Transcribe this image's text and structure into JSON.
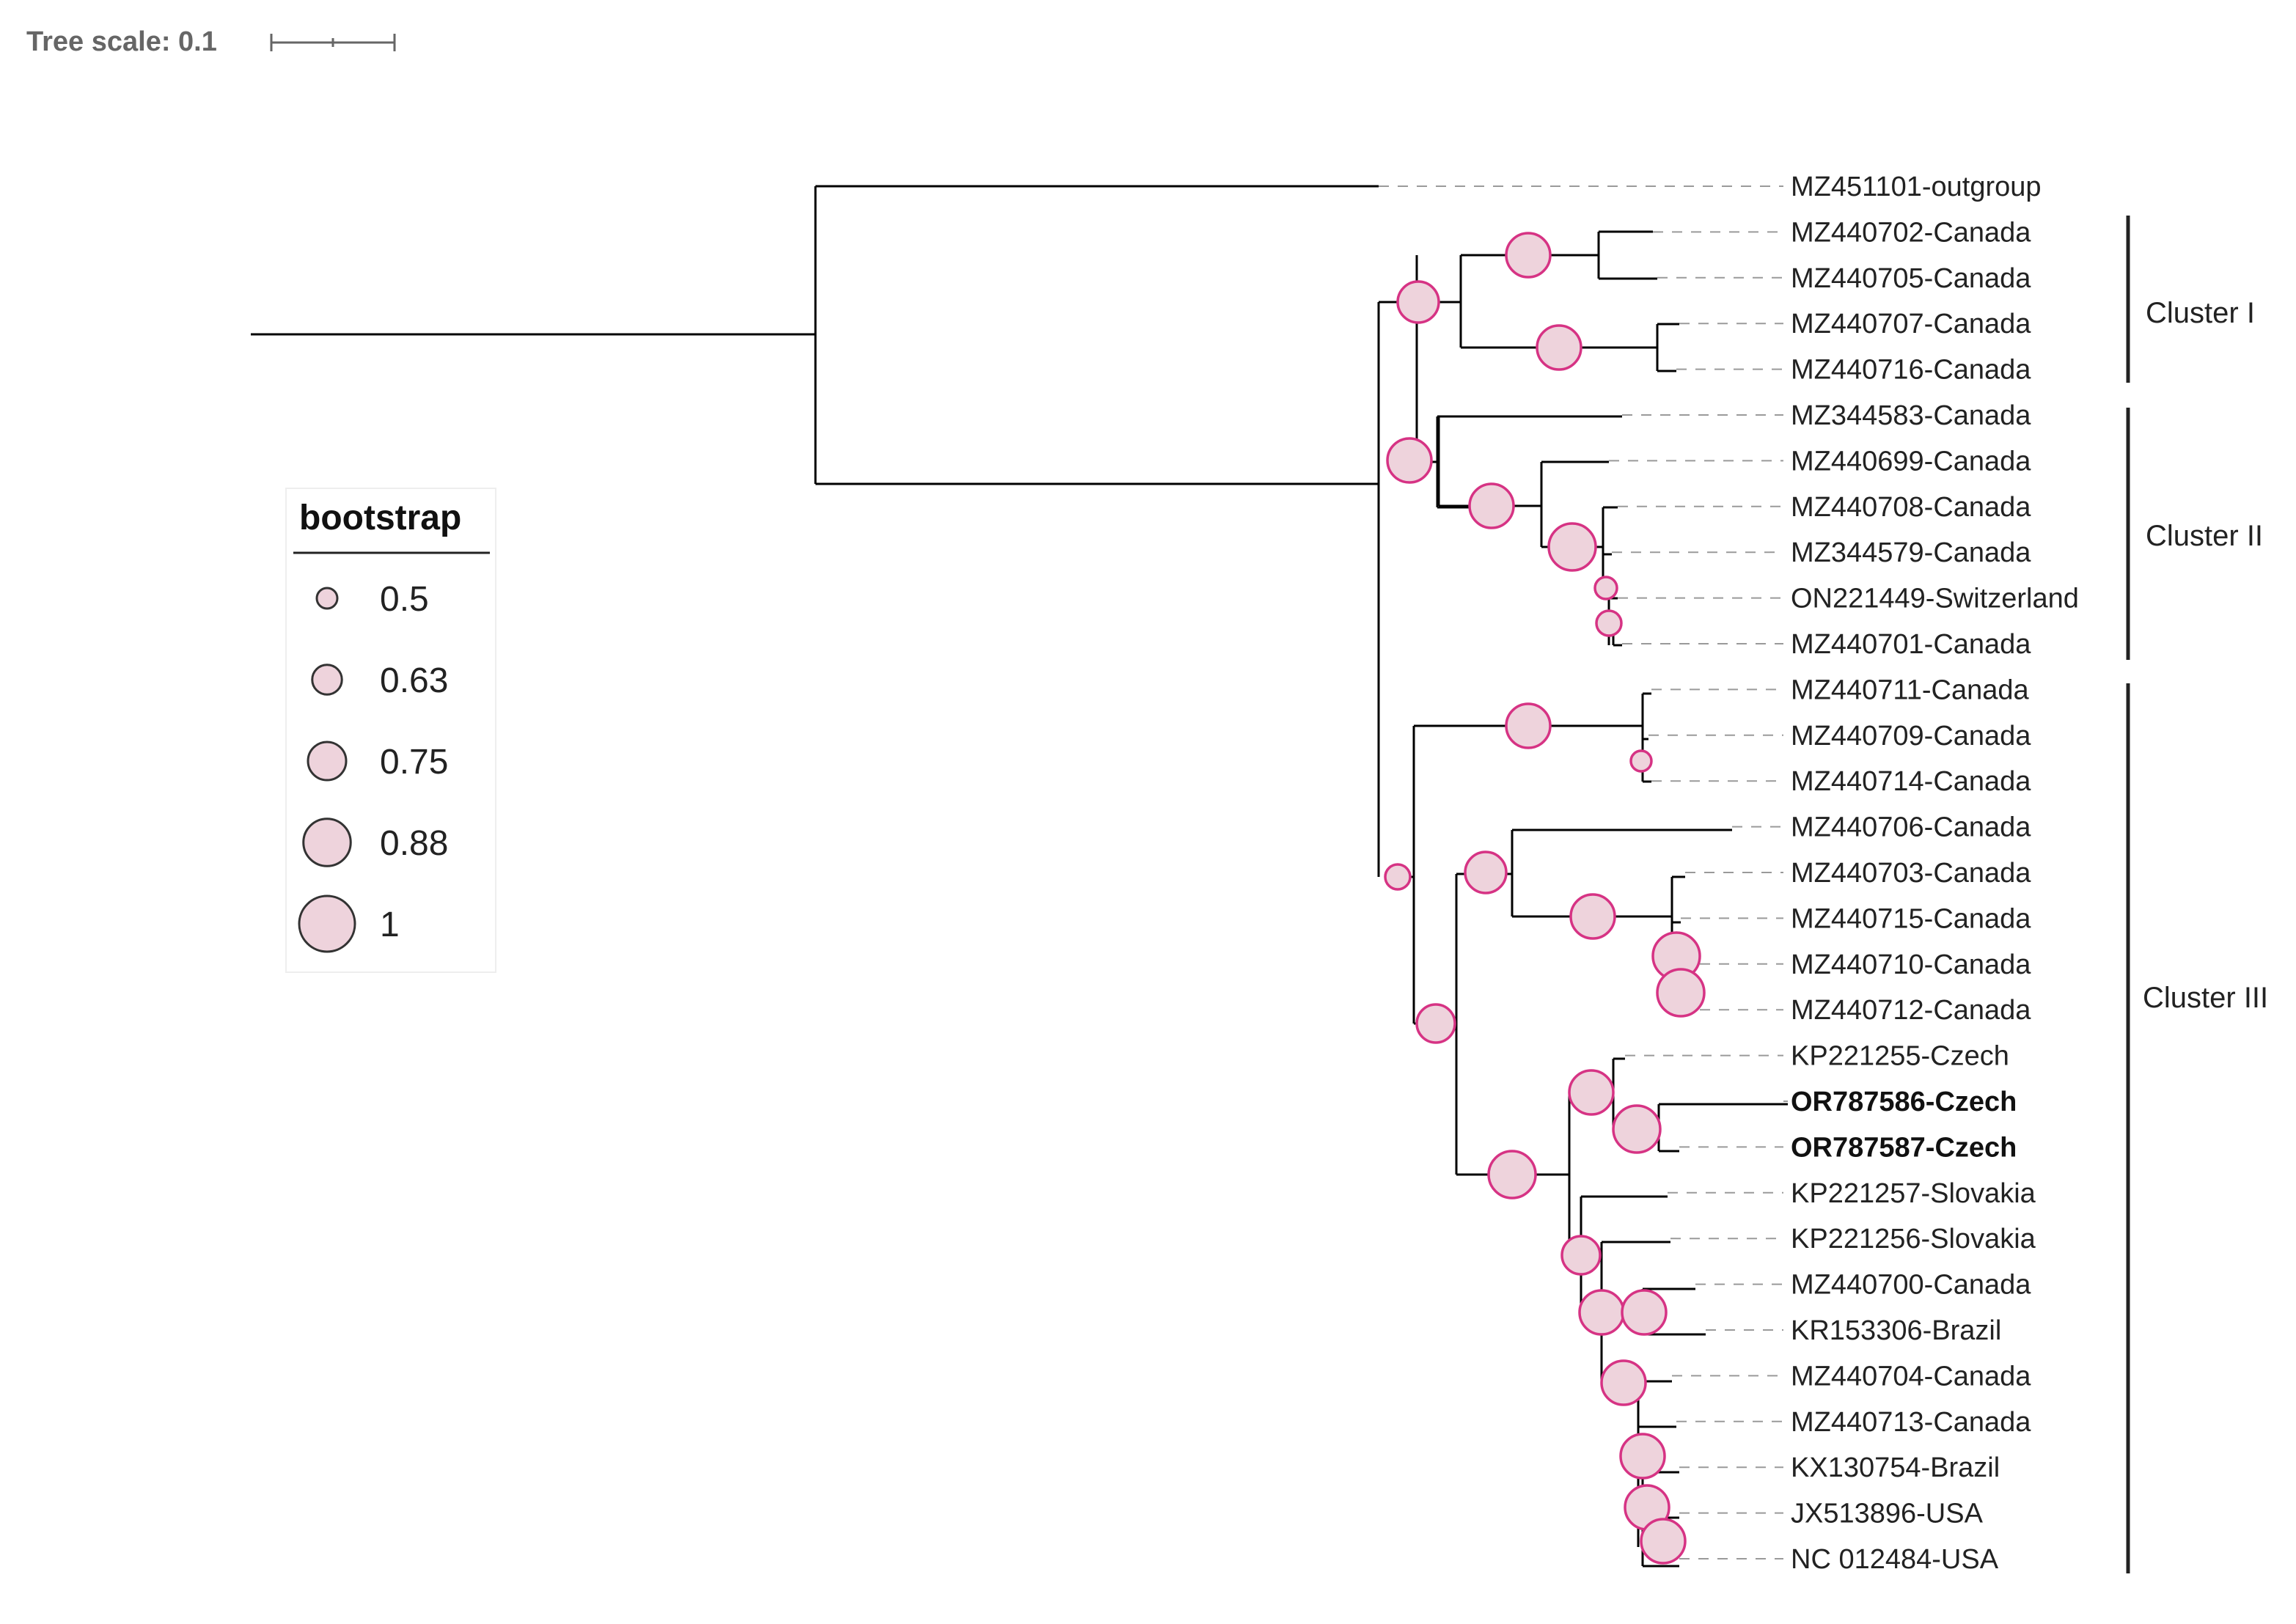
{
  "tree_scale": {
    "label": "Tree scale: 0.1"
  },
  "legend": {
    "title": "bootstrap",
    "items": [
      {
        "label": "0.5",
        "value": 0.5
      },
      {
        "label": "0.63",
        "value": 0.63
      },
      {
        "label": "0.75",
        "value": 0.75
      },
      {
        "label": "0.88",
        "value": 0.88
      },
      {
        "label": "1",
        "value": 1
      }
    ]
  },
  "leaves": [
    {
      "label": "MZ451101-outgroup",
      "bold": false
    },
    {
      "label": "MZ440702-Canada",
      "bold": false
    },
    {
      "label": "MZ440705-Canada",
      "bold": false
    },
    {
      "label": "MZ440707-Canada",
      "bold": false
    },
    {
      "label": "MZ440716-Canada",
      "bold": false
    },
    {
      "label": "MZ344583-Canada",
      "bold": false
    },
    {
      "label": "MZ440699-Canada",
      "bold": false
    },
    {
      "label": "MZ440708-Canada",
      "bold": false
    },
    {
      "label": "MZ344579-Canada",
      "bold": false
    },
    {
      "label": "ON221449-Switzerland",
      "bold": false
    },
    {
      "label": "MZ440701-Canada",
      "bold": false
    },
    {
      "label": "MZ440711-Canada",
      "bold": false
    },
    {
      "label": "MZ440709-Canada",
      "bold": false
    },
    {
      "label": "MZ440714-Canada",
      "bold": false
    },
    {
      "label": "MZ440706-Canada",
      "bold": false
    },
    {
      "label": "MZ440703-Canada",
      "bold": false
    },
    {
      "label": "MZ440715-Canada",
      "bold": false
    },
    {
      "label": "MZ440710-Canada",
      "bold": false
    },
    {
      "label": "MZ440712-Canada",
      "bold": false
    },
    {
      "label": "KP221255-Czech",
      "bold": false
    },
    {
      "label": "OR787586-Czech",
      "bold": true
    },
    {
      "label": "OR787587-Czech",
      "bold": true
    },
    {
      "label": "KP221257-Slovakia",
      "bold": false
    },
    {
      "label": "KP221256-Slovakia",
      "bold": false
    },
    {
      "label": "MZ440700-Canada",
      "bold": false
    },
    {
      "label": "KR153306-Brazil",
      "bold": false
    },
    {
      "label": "MZ440704-Canada",
      "bold": false
    },
    {
      "label": "MZ440713-Canada",
      "bold": false
    },
    {
      "label": "KX130754-Brazil",
      "bold": false
    },
    {
      "label": "JX513896-USA",
      "bold": false
    },
    {
      "label": "NC 012484-USA",
      "bold": false
    }
  ],
  "clusters": [
    {
      "label": "Cluster I"
    },
    {
      "label": "Cluster II"
    },
    {
      "label": "Cluster III"
    }
  ]
}
